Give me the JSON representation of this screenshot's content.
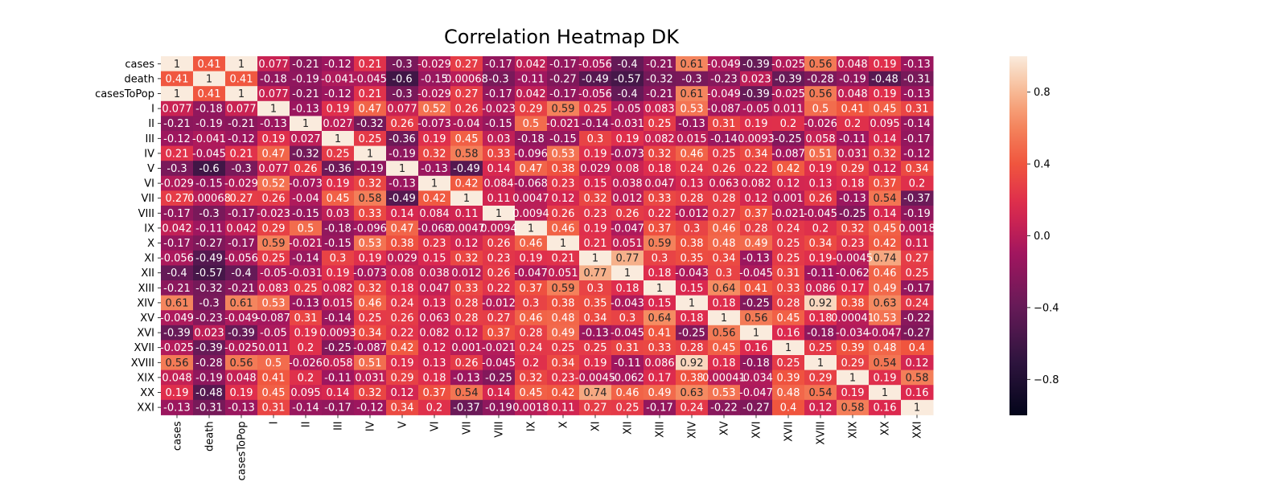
{
  "chart_data": {
    "type": "heatmap",
    "title": "Correlation Heatmap DK",
    "xlabel": "",
    "ylabel": "",
    "labels": [
      "cases",
      "death",
      "casesToPop",
      "I",
      "II",
      "III",
      "IV",
      "V",
      "VI",
      "VII",
      "VIII",
      "IX",
      "X",
      "XI",
      "XII",
      "XIII",
      "XIV",
      "XV",
      "XVI",
      "XVII",
      "XVIII",
      "XIX",
      "XX",
      "XXI"
    ],
    "value_range": [
      -1,
      1
    ],
    "colormap": "rocket",
    "colorbar_ticks": [
      "0.8",
      "0.4",
      "0.0",
      "−0.4",
      "−0.8"
    ],
    "colorbar_tick_values": [
      0.8,
      0.4,
      0.0,
      -0.4,
      -0.8
    ],
    "annotations": [
      [
        "1",
        "0.41",
        "1",
        "0.077",
        "-0.21",
        "-0.12",
        "0.21",
        "-0.3",
        "-0.029",
        "0.27",
        "-0.17",
        "0.042",
        "-0.17",
        "-0.056",
        "-0.4",
        "-0.21",
        "0.61",
        "-0.049",
        "-0.39",
        "-0.025",
        "0.56",
        "0.048",
        "0.19",
        "-0.13"
      ],
      [
        "0.41",
        "1",
        "0.41",
        "-0.18",
        "-0.19",
        "-0.041",
        "-0.045",
        "-0.6",
        "-0.15",
        "0.00068",
        "-0.3",
        "-0.11",
        "-0.27",
        "-0.49",
        "-0.57",
        "-0.32",
        "-0.3",
        "-0.23",
        "0.023",
        "-0.39",
        "-0.28",
        "-0.19",
        "-0.48",
        "-0.31"
      ],
      [
        "1",
        "0.41",
        "1",
        "0.077",
        "-0.21",
        "-0.12",
        "0.21",
        "-0.3",
        "-0.029",
        "0.27",
        "-0.17",
        "0.042",
        "-0.17",
        "-0.056",
        "-0.4",
        "-0.21",
        "0.61",
        "-0.049",
        "-0.39",
        "-0.025",
        "0.56",
        "0.048",
        "0.19",
        "-0.13"
      ],
      [
        "0.077",
        "-0.18",
        "0.077",
        "1",
        "-0.13",
        "0.19",
        "0.47",
        "0.077",
        "0.52",
        "0.26",
        "-0.023",
        "0.29",
        "0.59",
        "0.25",
        "-0.05",
        "0.083",
        "0.53",
        "-0.087",
        "-0.05",
        "0.011",
        "0.5",
        "0.41",
        "0.45",
        "0.31"
      ],
      [
        "-0.21",
        "-0.19",
        "-0.21",
        "-0.13",
        "1",
        "0.027",
        "-0.32",
        "0.26",
        "-0.073",
        "-0.04",
        "-0.15",
        "0.5",
        "-0.021",
        "-0.14",
        "-0.031",
        "0.25",
        "-0.13",
        "0.31",
        "0.19",
        "0.2",
        "-0.026",
        "0.2",
        "0.095",
        "-0.14"
      ],
      [
        "-0.12",
        "-0.041",
        "-0.12",
        "0.19",
        "0.027",
        "1",
        "0.25",
        "-0.36",
        "0.19",
        "0.45",
        "0.03",
        "-0.18",
        "-0.15",
        "0.3",
        "0.19",
        "0.082",
        "0.015",
        "-0.14",
        "0.0093",
        "-0.25",
        "0.058",
        "-0.11",
        "0.14",
        "-0.17"
      ],
      [
        "0.21",
        "-0.045",
        "0.21",
        "0.47",
        "-0.32",
        "0.25",
        "1",
        "-0.19",
        "0.32",
        "0.58",
        "0.33",
        "-0.096",
        "0.53",
        "0.19",
        "-0.073",
        "0.32",
        "0.46",
        "0.25",
        "0.34",
        "-0.087",
        "0.51",
        "0.031",
        "0.32",
        "-0.12"
      ],
      [
        "-0.3",
        "-0.6",
        "-0.3",
        "0.077",
        "0.26",
        "-0.36",
        "-0.19",
        "1",
        "-0.13",
        "-0.49",
        "0.14",
        "0.47",
        "0.38",
        "0.029",
        "0.08",
        "0.18",
        "0.24",
        "0.26",
        "0.22",
        "0.42",
        "0.19",
        "0.29",
        "0.12",
        "0.34"
      ],
      [
        "-0.029",
        "-0.15",
        "-0.029",
        "0.52",
        "-0.073",
        "0.19",
        "0.32",
        "-0.13",
        "1",
        "0.42",
        "0.084",
        "-0.068",
        "0.23",
        "0.15",
        "0.038",
        "0.047",
        "0.13",
        "0.063",
        "0.082",
        "0.12",
        "0.13",
        "0.18",
        "0.37",
        "0.2"
      ],
      [
        "0.27",
        "0.00068",
        "0.27",
        "0.26",
        "-0.04",
        "0.45",
        "0.58",
        "-0.49",
        "0.42",
        "1",
        "0.11",
        "0.0047",
        "0.12",
        "0.32",
        "0.012",
        "0.33",
        "0.28",
        "0.28",
        "0.12",
        "0.001",
        "0.26",
        "-0.13",
        "0.54",
        "-0.37"
      ],
      [
        "-0.17",
        "-0.3",
        "-0.17",
        "-0.023",
        "-0.15",
        "0.03",
        "0.33",
        "0.14",
        "0.084",
        "0.11",
        "1",
        "0.0094",
        "0.26",
        "0.23",
        "0.26",
        "0.22",
        "-0.012",
        "0.27",
        "0.37",
        "-0.021",
        "-0.045",
        "-0.25",
        "0.14",
        "-0.19"
      ],
      [
        "0.042",
        "-0.11",
        "0.042",
        "0.29",
        "0.5",
        "-0.18",
        "-0.096",
        "0.47",
        "-0.068",
        "0.0047",
        "0.0094",
        "1",
        "0.46",
        "0.19",
        "-0.047",
        "0.37",
        "0.3",
        "0.46",
        "0.28",
        "0.24",
        "0.2",
        "0.32",
        "0.45",
        "0.0018"
      ],
      [
        "-0.17",
        "-0.27",
        "-0.17",
        "0.59",
        "-0.021",
        "-0.15",
        "0.53",
        "0.38",
        "0.23",
        "0.12",
        "0.26",
        "0.46",
        "1",
        "0.21",
        "0.051",
        "0.59",
        "0.38",
        "0.48",
        "0.49",
        "0.25",
        "0.34",
        "0.23",
        "0.42",
        "0.11"
      ],
      [
        "-0.056",
        "-0.49",
        "-0.056",
        "0.25",
        "-0.14",
        "0.3",
        "0.19",
        "0.029",
        "0.15",
        "0.32",
        "0.23",
        "0.19",
        "0.21",
        "1",
        "0.77",
        "0.3",
        "0.35",
        "0.34",
        "-0.13",
        "0.25",
        "0.19",
        "-0.0045",
        "0.74",
        "0.27"
      ],
      [
        "-0.4",
        "-0.57",
        "-0.4",
        "-0.05",
        "-0.031",
        "0.19",
        "-0.073",
        "0.08",
        "0.038",
        "0.012",
        "0.26",
        "-0.047",
        "0.051",
        "0.77",
        "1",
        "0.18",
        "-0.043",
        "0.3",
        "-0.045",
        "0.31",
        "-0.11",
        "-0.062",
        "0.46",
        "0.25"
      ],
      [
        "-0.21",
        "-0.32",
        "-0.21",
        "0.083",
        "0.25",
        "0.082",
        "0.32",
        "0.18",
        "0.047",
        "0.33",
        "0.22",
        "0.37",
        "0.59",
        "0.3",
        "0.18",
        "1",
        "0.15",
        "0.64",
        "0.41",
        "0.33",
        "0.086",
        "0.17",
        "0.49",
        "-0.17"
      ],
      [
        "0.61",
        "-0.3",
        "0.61",
        "0.53",
        "-0.13",
        "0.015",
        "0.46",
        "0.24",
        "0.13",
        "0.28",
        "-0.012",
        "0.3",
        "0.38",
        "0.35",
        "-0.043",
        "0.15",
        "1",
        "0.18",
        "-0.25",
        "0.28",
        "0.92",
        "0.38",
        "0.63",
        "0.24"
      ],
      [
        "-0.049",
        "-0.23",
        "-0.049",
        "-0.087",
        "0.31",
        "-0.14",
        "0.25",
        "0.26",
        "0.063",
        "0.28",
        "0.27",
        "0.46",
        "0.48",
        "0.34",
        "0.3",
        "0.64",
        "0.18",
        "1",
        "0.56",
        "0.45",
        "0.18",
        "0.00041",
        "0.53",
        "-0.22"
      ],
      [
        "-0.39",
        "0.023",
        "-0.39",
        "-0.05",
        "0.19",
        "0.0093",
        "0.34",
        "0.22",
        "0.082",
        "0.12",
        "0.37",
        "0.28",
        "0.49",
        "-0.13",
        "-0.045",
        "0.41",
        "-0.25",
        "0.56",
        "1",
        "0.16",
        "-0.18",
        "-0.034",
        "-0.047",
        "-0.27"
      ],
      [
        "-0.025",
        "-0.39",
        "-0.025",
        "0.011",
        "0.2",
        "-0.25",
        "-0.087",
        "0.42",
        "0.12",
        "0.001",
        "-0.021",
        "0.24",
        "0.25",
        "0.25",
        "0.31",
        "0.33",
        "0.28",
        "0.45",
        "0.16",
        "1",
        "0.25",
        "0.39",
        "0.48",
        "0.4"
      ],
      [
        "0.56",
        "-0.28",
        "0.56",
        "0.5",
        "-0.026",
        "0.058",
        "0.51",
        "0.19",
        "0.13",
        "0.26",
        "-0.045",
        "0.2",
        "0.34",
        "0.19",
        "-0.11",
        "0.086",
        "0.92",
        "0.18",
        "-0.18",
        "0.25",
        "1",
        "0.29",
        "0.54",
        "0.12"
      ],
      [
        "0.048",
        "-0.19",
        "0.048",
        "0.41",
        "0.2",
        "-0.11",
        "0.031",
        "0.29",
        "0.18",
        "-0.13",
        "-0.25",
        "0.32",
        "0.23",
        "-0.0045",
        "-0.062",
        "0.17",
        "0.38",
        "0.00041",
        "-0.034",
        "0.39",
        "0.29",
        "1",
        "0.19",
        "0.58"
      ],
      [
        "0.19",
        "-0.48",
        "0.19",
        "0.45",
        "0.095",
        "0.14",
        "0.32",
        "0.12",
        "0.37",
        "0.54",
        "0.14",
        "0.45",
        "0.42",
        "0.74",
        "0.46",
        "0.49",
        "0.63",
        "0.53",
        "-0.047",
        "0.48",
        "0.54",
        "0.19",
        "1",
        "0.16"
      ],
      [
        "-0.13",
        "-0.31",
        "-0.13",
        "0.31",
        "-0.14",
        "-0.17",
        "-0.12",
        "0.34",
        "0.2",
        "-0.37",
        "-0.19",
        "0.0018",
        "0.11",
        "0.27",
        "0.25",
        "-0.17",
        "0.24",
        "-0.22",
        "-0.27",
        "0.4",
        "0.12",
        "0.58",
        "0.16",
        "1"
      ]
    ]
  }
}
